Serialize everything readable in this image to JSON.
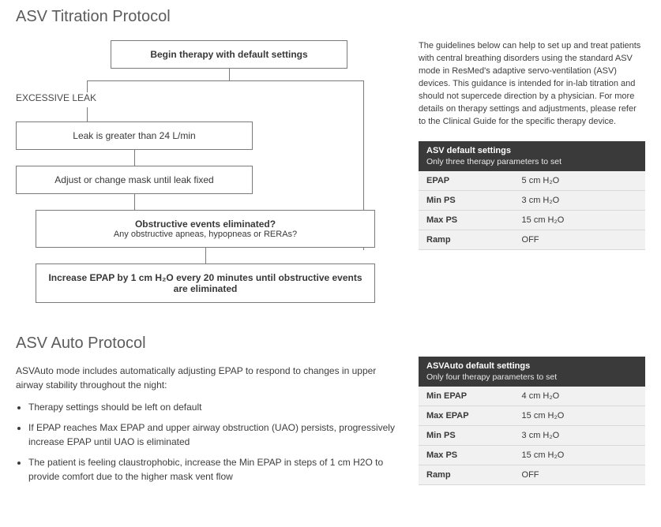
{
  "titles": {
    "titration": "ASV Titration Protocol",
    "auto": "ASV Auto Protocol"
  },
  "flowchart": {
    "begin": "Begin therapy with default settings",
    "excessive_leak_label": "EXCESSIVE LEAK",
    "leak_box": "Leak is greater than 24 L/min",
    "adjust_box": "Adjust or change mask until leak fixed",
    "obstructive_q_title": "Obstructive events eliminated?",
    "obstructive_q_sub": "Any obstructive apneas, hypopneas or RERAs?",
    "increase_epap": "Increase EPAP by 1 cm H₂O every 20 minutes until obstructive events are eliminated"
  },
  "sidebar_text": "The guidelines below can help to set up and treat patients with central breathing disorders using the standard ASV mode in ResMed's adaptive servo-ventilation (ASV) devices. This guidance is intended for in-lab titration and should not supercede direction by a physician. For more details on therapy settings and adjustments, please refer to the Clinical Guide for the specific therapy device.",
  "table1": {
    "header": "ASV default settings",
    "subheader": "Only three therapy parameters to set",
    "rows": [
      {
        "label": "EPAP",
        "value": "5 cm H₂O"
      },
      {
        "label": "Min PS",
        "value": "3 cm H₂O"
      },
      {
        "label": "Max PS",
        "value": "15 cm H₂O"
      },
      {
        "label": "Ramp",
        "value": "OFF"
      }
    ]
  },
  "auto_intro": "ASVAuto mode includes automatically adjusting EPAP to respond to changes in upper airway stability throughout the night:",
  "auto_bullets": [
    "Therapy settings should be left on default",
    "If EPAP reaches Max EPAP and upper airway obstruction (UAO) persists, progressively increase EPAP until UAO is eliminated",
    "The patient is feeling claustrophobic, increase the Min EPAP in steps of 1 cm H2O to provide comfort due to the higher mask vent flow"
  ],
  "table2": {
    "header": "ASVAuto default settings",
    "subheader": "Only four therapy parameters to set",
    "rows": [
      {
        "label": "Min EPAP",
        "value": "4 cm H₂O"
      },
      {
        "label": "Max EPAP",
        "value": "15 cm H₂O"
      },
      {
        "label": "Min PS",
        "value": "3 cm H₂O"
      },
      {
        "label": "Max PS",
        "value": "15 cm H₂O"
      },
      {
        "label": "Ramp",
        "value": "OFF"
      }
    ]
  },
  "style": {
    "box_border": "#7a7a7a",
    "table_header_bg": "#3a3a3a",
    "row_bg": "#f1f1f1"
  }
}
